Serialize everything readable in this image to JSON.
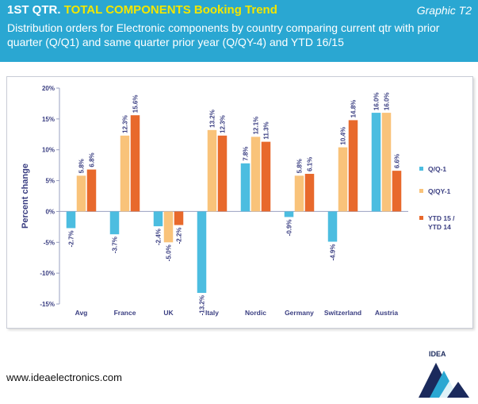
{
  "header": {
    "title_prefix": "1ST QTR.",
    "title_main": "TOTAL COMPONENTS Booking Trend",
    "graphic_label": "Graphic T2",
    "subtitle": "Distribution orders for Electronic components by country comparing current qtr with prior quarter (Q/Q1) and same quarter prior year (Q/QY-4) and YTD 16/15"
  },
  "footer": {
    "website": "www.ideaelectronics.com",
    "logo_text": "IDEA"
  },
  "colors": {
    "header_bg": "#2aa7d2",
    "title_accent": "#f2e600",
    "axis_text": "#3b3f82",
    "series": [
      "#4cbde0",
      "#f9c37a",
      "#e8692c"
    ]
  },
  "chart_data": {
    "type": "bar",
    "categories": [
      "Avg",
      "France",
      "UK",
      "Italy",
      "Nordic",
      "Germany",
      "Switzerland",
      "Austria"
    ],
    "ylabel": "Percent change",
    "ylim": [
      -15,
      20
    ],
    "yticks": [
      "20%",
      "15%",
      "10%",
      "5%",
      "0%",
      "-5%",
      "-10%",
      "-15%"
    ],
    "ytick_values": [
      20,
      15,
      10,
      5,
      0,
      -5,
      -10,
      -15
    ],
    "grid": false,
    "legend_position": "right",
    "series": [
      {
        "name": "Q/Q-1",
        "values": [
          -2.7,
          -3.7,
          -2.4,
          -13.2,
          7.8,
          -0.9,
          -4.9,
          16.0
        ],
        "labels": [
          "-2.7%",
          "-3.7%",
          "-2.4%",
          "-13.2%",
          "7.8%",
          "-0.9%",
          "-4.9%",
          "16.0%"
        ]
      },
      {
        "name": "Q/QY-1",
        "values": [
          5.8,
          12.3,
          -5.0,
          13.2,
          12.1,
          5.8,
          10.4,
          16.0
        ],
        "labels": [
          "5.8%",
          "12.3%",
          "-5.0%",
          "13.2%",
          "12.1%",
          "5.8%",
          "10.4%",
          "16.0%"
        ]
      },
      {
        "name": "YTD 15 / YTD 14",
        "name_lines": [
          "YTD 15 /",
          "YTD 14"
        ],
        "values": [
          6.8,
          15.6,
          -2.2,
          12.3,
          11.3,
          6.1,
          14.8,
          6.6
        ],
        "labels": [
          "6.8%",
          "15.6%",
          "-2.2%",
          "12.3%",
          "11.3%",
          "6.1%",
          "14.8%",
          "6.6%"
        ]
      }
    ]
  }
}
